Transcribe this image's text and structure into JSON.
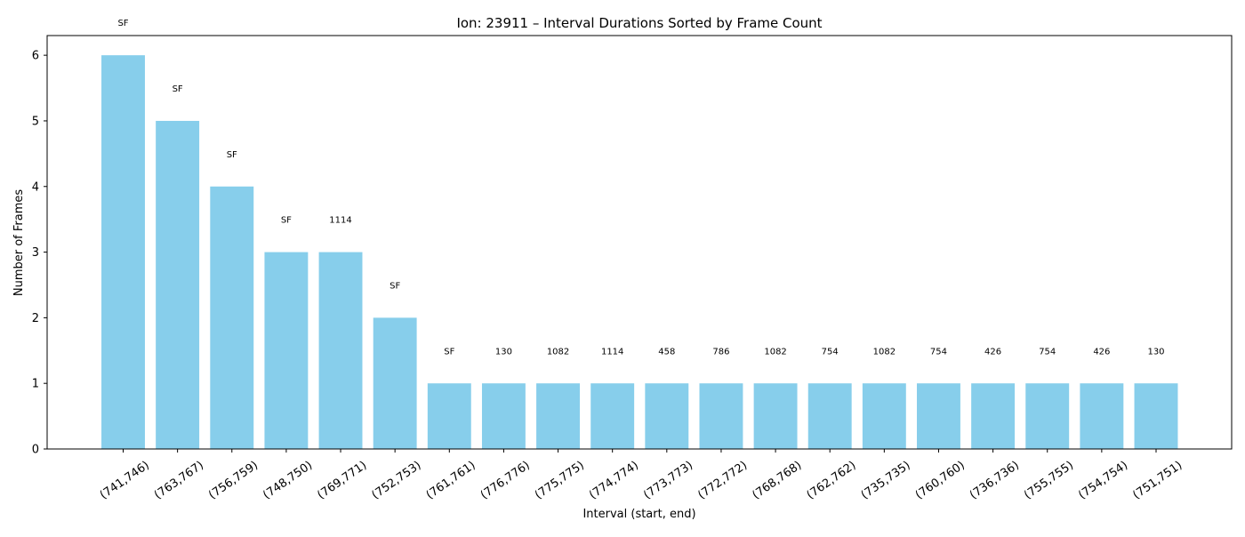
{
  "chart_data": {
    "type": "bar",
    "title": "Ion: 23911 – Interval Durations Sorted by Frame Count",
    "xlabel": "Interval (start, end)",
    "ylabel": "Number of Frames",
    "ylim": [
      0,
      6.3
    ],
    "yticks": [
      0,
      1,
      2,
      3,
      4,
      5,
      6
    ],
    "grid": false,
    "bar_color": "#87CEEB",
    "categories": [
      "(741,746)",
      "(763,767)",
      "(756,759)",
      "(748,750)",
      "(769,771)",
      "(752,753)",
      "(761,761)",
      "(776,776)",
      "(775,775)",
      "(774,774)",
      "(773,773)",
      "(772,772)",
      "(768,768)",
      "(762,762)",
      "(735,735)",
      "(760,760)",
      "(736,736)",
      "(755,755)",
      "(754,754)",
      "(751,751)"
    ],
    "values": [
      6,
      5,
      4,
      3,
      3,
      2,
      1,
      1,
      1,
      1,
      1,
      1,
      1,
      1,
      1,
      1,
      1,
      1,
      1,
      1
    ],
    "bar_labels": [
      "SF",
      "SF",
      "SF",
      "SF",
      "1114",
      "SF",
      "SF",
      "130",
      "1082",
      "1114",
      "458",
      "786",
      "1082",
      "754",
      "1082",
      "754",
      "426",
      "754",
      "426",
      "130"
    ]
  }
}
